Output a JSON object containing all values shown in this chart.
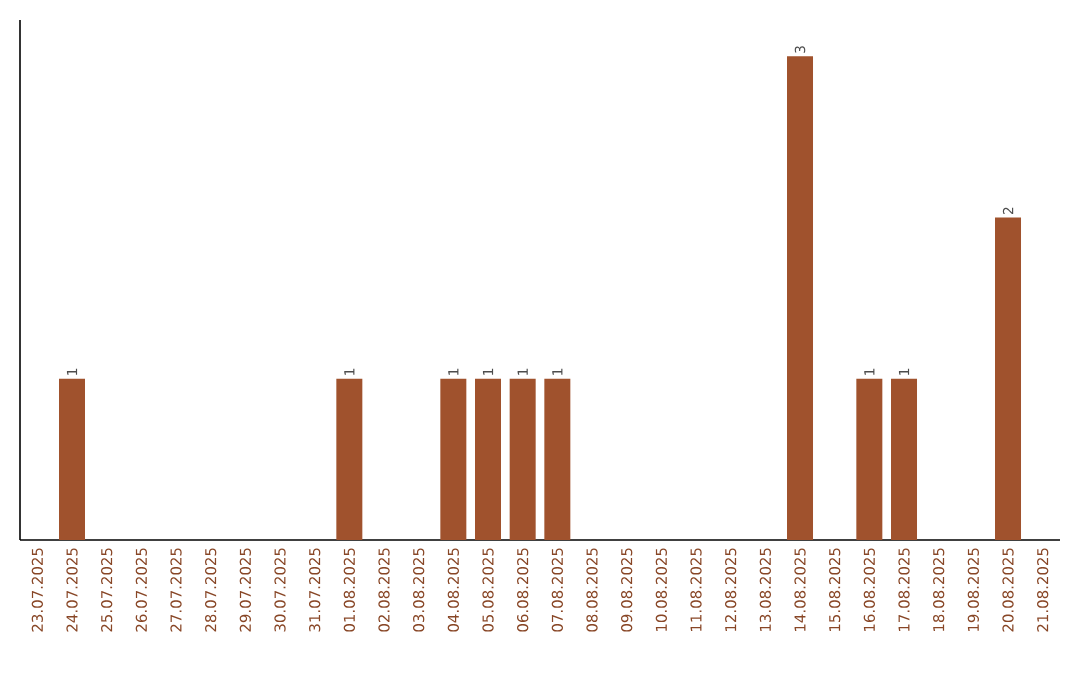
{
  "chart_data": {
    "type": "bar",
    "categories": [
      "23.07.2025",
      "24.07.2025",
      "25.07.2025",
      "26.07.2025",
      "27.07.2025",
      "28.07.2025",
      "29.07.2025",
      "30.07.2025",
      "31.07.2025",
      "01.08.2025",
      "02.08.2025",
      "03.08.2025",
      "04.08.2025",
      "05.08.2025",
      "06.08.2025",
      "07.08.2025",
      "08.08.2025",
      "09.08.2025",
      "10.08.2025",
      "11.08.2025",
      "12.08.2025",
      "13.08.2025",
      "14.08.2025",
      "15.08.2025",
      "16.08.2025",
      "17.08.2025",
      "18.08.2025",
      "19.08.2025",
      "20.08.2025",
      "21.08.2025"
    ],
    "values": [
      0,
      1,
      0,
      0,
      0,
      0,
      0,
      0,
      0,
      1,
      0,
      0,
      1,
      1,
      1,
      1,
      0,
      0,
      0,
      0,
      0,
      0,
      3,
      0,
      1,
      1,
      0,
      0,
      2,
      0
    ],
    "value_labels": [
      null,
      "1",
      null,
      null,
      null,
      null,
      null,
      null,
      null,
      "1",
      null,
      null,
      "1",
      "1",
      "1",
      "1",
      null,
      null,
      null,
      null,
      null,
      null,
      "3",
      null,
      "1",
      "1",
      null,
      null,
      "2",
      null
    ],
    "color": "#a0522d"
  }
}
